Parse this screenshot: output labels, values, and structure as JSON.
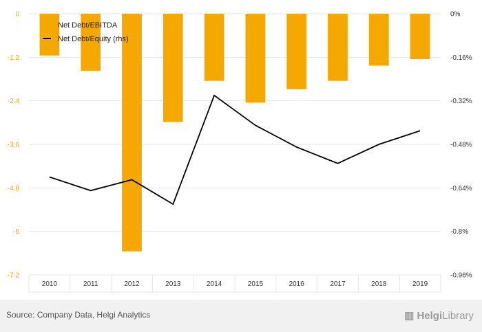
{
  "chart_data": {
    "type": "bar",
    "categories": [
      "2010",
      "2011",
      "2012",
      "2013",
      "2014",
      "2015",
      "2016",
      "2017",
      "2018",
      "2019"
    ],
    "series": [
      {
        "name": "Net Debt/EBITDA",
        "type": "bar",
        "axis": "left",
        "color": "#f5a800",
        "values": [
          -1.15,
          -1.57,
          -6.55,
          -2.98,
          -1.85,
          -2.45,
          -2.08,
          -1.85,
          -1.43,
          -1.25
        ]
      },
      {
        "name": "Net Debt/Equity (rhs)",
        "type": "line",
        "axis": "right",
        "color": "#000000",
        "values": [
          -0.6,
          -0.65,
          -0.61,
          -0.7,
          -0.3,
          -0.41,
          -0.49,
          -0.55,
          -0.48,
          -0.43
        ]
      }
    ],
    "y_left": {
      "ylim": [
        -7.2,
        0
      ],
      "ticks": [
        "0",
        "-1.2",
        "-2.4",
        "-3.6",
        "-4.8",
        "-6",
        "-7.2"
      ]
    },
    "y_right": {
      "ylim": [
        -0.96,
        0
      ],
      "ticks": [
        "0%",
        "-0.16%",
        "-0.32%",
        "-0.48%",
        "-0.64%",
        "-0.8%",
        "-0.96%"
      ]
    },
    "legend": {
      "placement": "top-left",
      "entries": [
        "Net Debt/EBITDA",
        "Net Debt/Equity (rhs)"
      ]
    },
    "grid": true
  },
  "footer": {
    "source": "Source: Company Data, Helgi Analytics",
    "logo_bold": "Helgi",
    "logo_light": "Library"
  }
}
